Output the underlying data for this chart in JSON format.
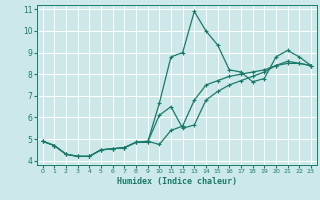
{
  "xlabel": "Humidex (Indice chaleur)",
  "xlim": [
    -0.5,
    23.5
  ],
  "ylim": [
    3.8,
    11.2
  ],
  "yticks": [
    4,
    5,
    6,
    7,
    8,
    9,
    10,
    11
  ],
  "xticks": [
    0,
    1,
    2,
    3,
    4,
    5,
    6,
    7,
    8,
    9,
    10,
    11,
    12,
    13,
    14,
    15,
    16,
    17,
    18,
    19,
    20,
    21,
    22,
    23
  ],
  "bg_color": "#cce8e8",
  "grid_color": "#ffffff",
  "line_color": "#1a7a6a",
  "line1_x": [
    0,
    1,
    2,
    3,
    4,
    5,
    6,
    7,
    8,
    9,
    10,
    11,
    12,
    13,
    14,
    15,
    16,
    17,
    18,
    19,
    20,
    21,
    22,
    23
  ],
  "line1_y": [
    4.9,
    4.7,
    4.3,
    4.2,
    4.2,
    4.5,
    4.55,
    4.6,
    4.85,
    4.85,
    6.65,
    8.8,
    9.0,
    10.9,
    10.0,
    9.35,
    8.2,
    8.1,
    7.65,
    7.8,
    8.8,
    9.1,
    8.8,
    8.4
  ],
  "line2_x": [
    0,
    1,
    2,
    3,
    4,
    5,
    6,
    7,
    8,
    9,
    10,
    11,
    12,
    13,
    14,
    15,
    16,
    17,
    18,
    19,
    20,
    21,
    22,
    23
  ],
  "line2_y": [
    4.9,
    4.7,
    4.3,
    4.2,
    4.2,
    4.5,
    4.55,
    4.6,
    4.85,
    4.85,
    6.1,
    6.5,
    5.5,
    5.65,
    6.8,
    7.2,
    7.5,
    7.7,
    7.9,
    8.1,
    8.4,
    8.6,
    8.5,
    8.4
  ],
  "line3_x": [
    0,
    1,
    2,
    3,
    4,
    5,
    6,
    7,
    8,
    9,
    10,
    11,
    12,
    13,
    14,
    15,
    16,
    17,
    18,
    19,
    20,
    21,
    22,
    23
  ],
  "line3_y": [
    4.9,
    4.7,
    4.3,
    4.2,
    4.2,
    4.5,
    4.55,
    4.6,
    4.85,
    4.9,
    4.75,
    5.4,
    5.6,
    6.8,
    7.5,
    7.7,
    7.9,
    8.0,
    8.1,
    8.2,
    8.4,
    8.5,
    8.5,
    8.4
  ]
}
